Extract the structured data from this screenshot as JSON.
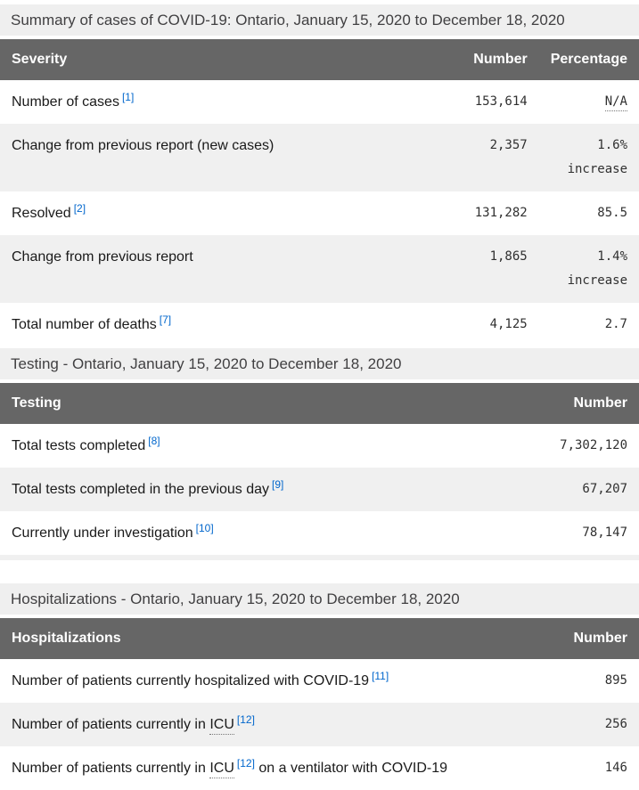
{
  "colors": {
    "header_bg": "#666666",
    "header_text": "#ffffff",
    "zebra_row_bg": "#f0f0f0",
    "caption_bg": "#efefef",
    "caption_text": "#414042",
    "link_blue": "#0066cc",
    "body_text": "#1a1a1a",
    "mono_text": "#303030"
  },
  "tables": [
    {
      "id": "severity",
      "caption": "Summary of cases of COVID-19: Ontario, January 15, 2020 to December 18, 2020",
      "columns": [
        "Severity",
        "Number",
        "Percentage"
      ],
      "rows": [
        {
          "label": {
            "pre": "Number of cases",
            "abbr": "",
            "ref": "[1]",
            "post": ""
          },
          "number": "153,614",
          "percentage": {
            "text": "N/A",
            "abbr": true
          }
        },
        {
          "label": {
            "pre": "Change from previous report (new cases)",
            "abbr": "",
            "ref": "",
            "post": ""
          },
          "number": "2,357",
          "percentage": {
            "text": "1.6% increase",
            "abbr": false
          }
        },
        {
          "label": {
            "pre": "Resolved",
            "abbr": "",
            "ref": "[2]",
            "post": ""
          },
          "number": "131,282",
          "percentage": {
            "text": "85.5",
            "abbr": false
          }
        },
        {
          "label": {
            "pre": "Change from previous report",
            "abbr": "",
            "ref": "",
            "post": ""
          },
          "number": "1,865",
          "percentage": {
            "text": "1.4% increase",
            "abbr": false
          }
        },
        {
          "label": {
            "pre": "Total number of deaths",
            "abbr": "",
            "ref": "[7]",
            "post": ""
          },
          "number": "4,125",
          "percentage": {
            "text": "2.7",
            "abbr": false
          }
        }
      ]
    },
    {
      "id": "testing",
      "caption": "Testing - Ontario, January 15, 2020 to December 18, 2020",
      "columns": [
        "Testing",
        "Number"
      ],
      "rows": [
        {
          "label": {
            "pre": "Total tests completed",
            "abbr": "",
            "ref": "[8]",
            "post": ""
          },
          "number": "7,302,120"
        },
        {
          "label": {
            "pre": "Total tests completed in the previous day",
            "abbr": "",
            "ref": "[9]",
            "post": ""
          },
          "number": "67,207"
        },
        {
          "label": {
            "pre": "Currently under investigation",
            "abbr": "",
            "ref": "[10]",
            "post": ""
          },
          "number": "78,147"
        }
      ]
    },
    {
      "id": "hospitalizations",
      "caption": "Hospitalizations - Ontario, January 15, 2020 to December 18, 2020",
      "columns": [
        "Hospitalizations",
        "Number"
      ],
      "rows": [
        {
          "label": {
            "pre": "Number of patients currently hospitalized with COVID-19",
            "abbr": "",
            "ref": "[11]",
            "post": ""
          },
          "number": "895"
        },
        {
          "label": {
            "pre": "Number of patients currently in ",
            "abbr": "ICU",
            "ref": "[12]",
            "post": ""
          },
          "number": "256"
        },
        {
          "label": {
            "pre": "Number of patients currently in ",
            "abbr": "ICU",
            "ref": "[12]",
            "post": " on a ventilator with COVID-19"
          },
          "number": "146"
        }
      ]
    }
  ]
}
